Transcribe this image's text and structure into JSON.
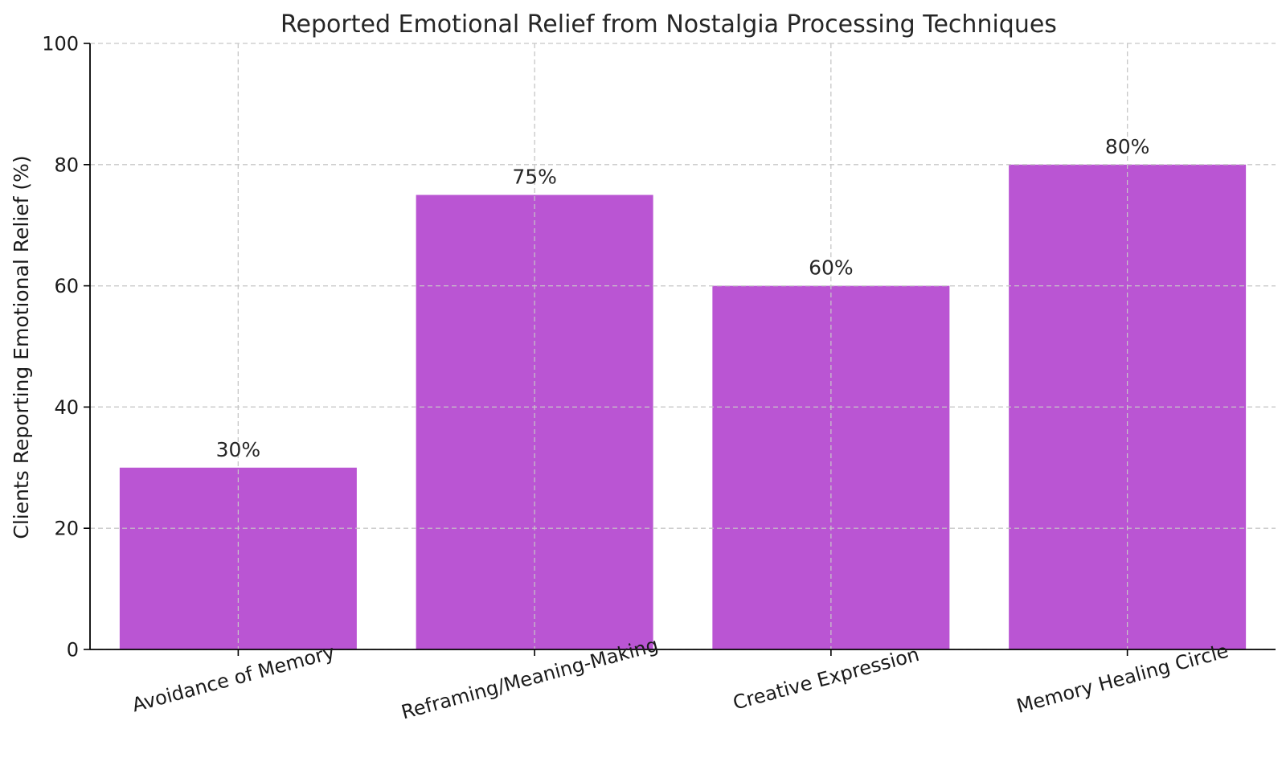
{
  "chart_data": {
    "type": "bar",
    "title": "Reported Emotional Relief from Nostalgia Processing Techniques",
    "xlabel": "",
    "ylabel": "Clients Reporting Emotional Relief (%)",
    "categories": [
      "Avoidance of Memory",
      "Reframing/Meaning-Making",
      "Creative Expression",
      "Memory Healing Circle"
    ],
    "values": [
      30,
      75,
      60,
      80
    ],
    "data_labels": [
      "30%",
      "75%",
      "60%",
      "80%"
    ],
    "ylim": [
      0,
      100
    ],
    "yticks": [
      0,
      20,
      40,
      60,
      80,
      100
    ],
    "grid": true,
    "bar_color": "#ba55d3"
  }
}
